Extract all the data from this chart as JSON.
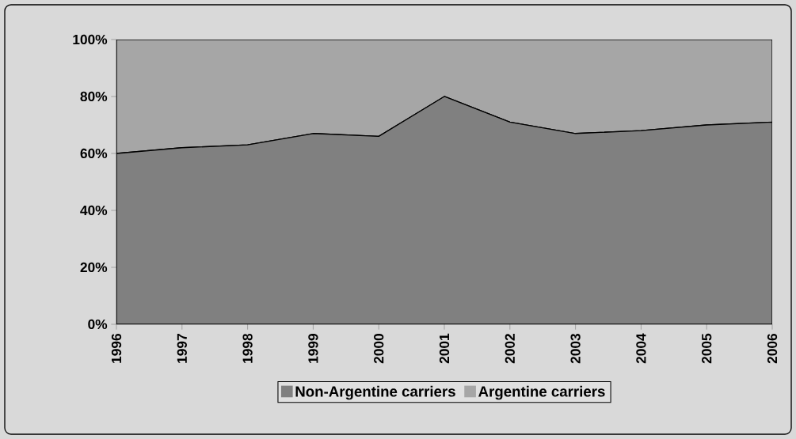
{
  "chart_data": {
    "type": "area",
    "stacked": true,
    "categories": [
      "1996",
      "1997",
      "1998",
      "1999",
      "2000",
      "2001",
      "2002",
      "2003",
      "2004",
      "2005",
      "2006"
    ],
    "series": [
      {
        "name": "Non-Argentine carriers",
        "color": "#808080",
        "values": [
          60,
          62,
          63,
          67,
          66,
          80,
          71,
          67,
          68,
          70,
          71
        ]
      },
      {
        "name": "Argentine carriers",
        "color": "#a6a6a6",
        "values": [
          40,
          38,
          37,
          33,
          34,
          20,
          29,
          33,
          32,
          30,
          29
        ]
      }
    ],
    "ylim": [
      0,
      100
    ],
    "yticks": [
      {
        "value": 0,
        "label": "0%"
      },
      {
        "value": 20,
        "label": "20%"
      },
      {
        "value": 40,
        "label": "40%"
      },
      {
        "value": 60,
        "label": "60%"
      },
      {
        "value": 80,
        "label": "80%"
      },
      {
        "value": 100,
        "label": "100%"
      }
    ],
    "legend": "bottom",
    "grid": false
  }
}
